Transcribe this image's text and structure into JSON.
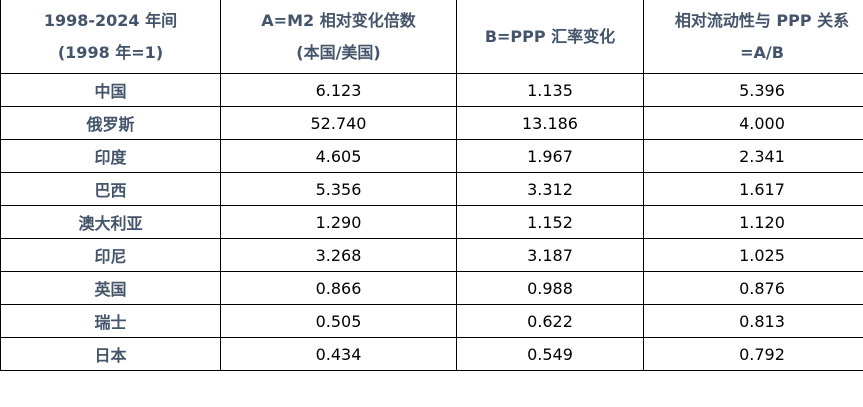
{
  "table": {
    "headers": [
      [
        "1998-2024 年间",
        "(1998 年=1)"
      ],
      [
        "A=M2 相对变化倍数",
        "(本国/美国)"
      ],
      [
        "B=PPP 汇率变化"
      ],
      [
        "相对流动性与 PPP 关系",
        "=A/B"
      ]
    ],
    "rows": [
      [
        "中国",
        "6.123",
        "1.135",
        "5.396"
      ],
      [
        "俄罗斯",
        "52.740",
        "13.186",
        "4.000"
      ],
      [
        "印度",
        "4.605",
        "1.967",
        "2.341"
      ],
      [
        "巴西",
        "5.356",
        "3.312",
        "1.617"
      ],
      [
        "澳大利亚",
        "1.290",
        "1.152",
        "1.120"
      ],
      [
        "印尼",
        "3.268",
        "3.187",
        "1.025"
      ],
      [
        "英国",
        "0.866",
        "0.988",
        "0.876"
      ],
      [
        "瑞士",
        "0.505",
        "0.622",
        "0.813"
      ],
      [
        "日本",
        "0.434",
        "0.549",
        "0.792"
      ]
    ]
  },
  "colors": {
    "header_text": "#44546A",
    "cell_text": "#000000",
    "border": "#000000"
  }
}
